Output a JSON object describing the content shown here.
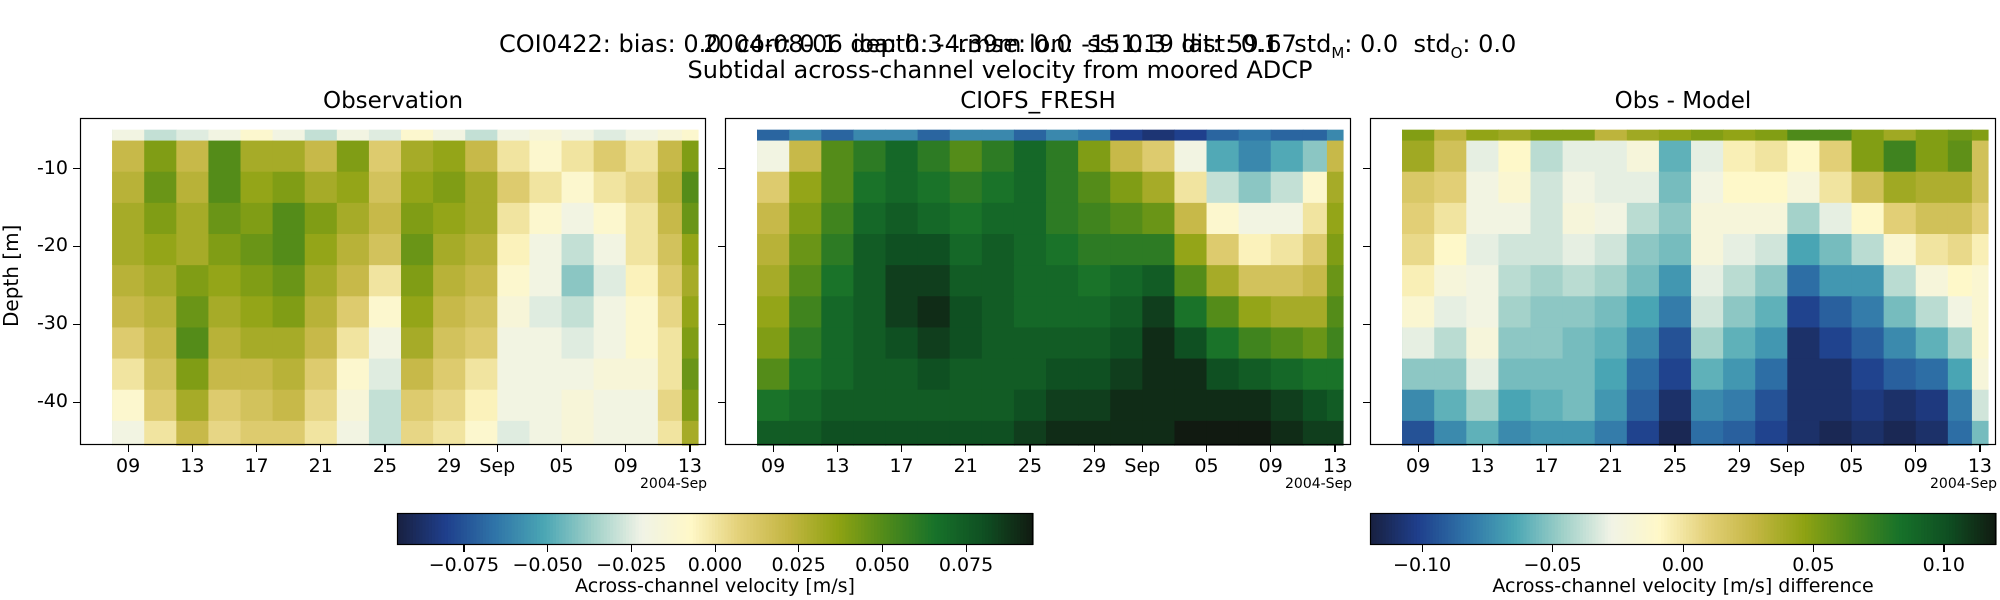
{
  "header": {
    "line1": "COI0422: bias: 0.0  corr: 0.1  ioa: 0.3  rmse: 0.0  ss: 0.3  dist: 0.1  std",
    "line1_sub_m": "M",
    "line1_mid": ": 0.0  std",
    "line1_sub_o": "O",
    "line1_end": ": 0.0",
    "line2": "2004-08-06 depth: -4.39m lon: -151.19 lat: 59.67",
    "line3": "Subtidal across-channel velocity from moored ADCP"
  },
  "chart_data": [
    {
      "type": "heatmap",
      "title": "Observation",
      "ylabel": "Depth [m]",
      "x_ticks": [
        "09",
        "13",
        "17",
        "21",
        "25",
        "29",
        "Sep",
        "05",
        "09",
        "13"
      ],
      "x_offset_label": "2004-Sep",
      "y_ticks": [
        "-10",
        "-20",
        "-30",
        "-40"
      ],
      "ylim": [
        -45.5,
        -3.5
      ],
      "colormap": "diverging blue-white-yellow-green",
      "clim": [
        -0.095,
        0.095
      ],
      "x": [
        "2004-08-07",
        "2004-08-09",
        "2004-08-11",
        "2004-08-13",
        "2004-08-15",
        "2004-08-17",
        "2004-08-19",
        "2004-08-21",
        "2004-08-23",
        "2004-08-25",
        "2004-08-27",
        "2004-08-29",
        "2004-08-31",
        "2004-09-02",
        "2004-09-04",
        "2004-09-06",
        "2004-09-08",
        "2004-09-10",
        "2004-09-12",
        "2004-09-13"
      ],
      "y": [
        -4.4,
        -8.4,
        -12.4,
        -16.4,
        -20.4,
        -24.4,
        -28.4,
        -32.4,
        -36.4,
        -40.4,
        -44.4
      ],
      "values": [
        [
          -0.03,
          -0.02,
          -0.03,
          -0.025,
          -0.02,
          -0.01,
          -0.02,
          -0.03,
          -0.02,
          -0.025,
          -0.01,
          -0.02,
          -0.03,
          -0.02,
          -0.015,
          -0.02,
          -0.025,
          -0.02,
          -0.015,
          -0.01
        ],
        [
          0.01,
          0.02,
          0.04,
          0.02,
          0.05,
          0.03,
          0.03,
          0.02,
          0.04,
          0.01,
          0.03,
          0.035,
          0.02,
          0.0,
          -0.01,
          0.0,
          0.01,
          0.0,
          0.02,
          0.04
        ],
        [
          0.02,
          0.025,
          0.045,
          0.025,
          0.05,
          0.035,
          0.04,
          0.03,
          0.035,
          0.015,
          0.035,
          0.04,
          0.03,
          0.01,
          0.0,
          -0.01,
          0.0,
          0.005,
          0.025,
          0.05
        ],
        [
          0.02,
          0.03,
          0.04,
          0.03,
          0.045,
          0.04,
          0.05,
          0.04,
          0.03,
          0.02,
          0.04,
          0.035,
          0.03,
          0.0,
          -0.01,
          -0.02,
          -0.01,
          0.0,
          0.02,
          0.045
        ],
        [
          0.015,
          0.03,
          0.035,
          0.03,
          0.04,
          0.045,
          0.05,
          0.035,
          0.025,
          0.015,
          0.045,
          0.03,
          0.025,
          -0.005,
          -0.02,
          -0.03,
          -0.02,
          0.0,
          0.015,
          0.035
        ],
        [
          0.0,
          0.025,
          0.03,
          0.04,
          0.035,
          0.04,
          0.045,
          0.03,
          0.02,
          0.0,
          0.04,
          0.025,
          0.02,
          -0.01,
          -0.02,
          -0.04,
          -0.025,
          -0.005,
          0.01,
          0.03
        ],
        [
          -0.01,
          0.02,
          0.025,
          0.045,
          0.03,
          0.035,
          0.04,
          0.025,
          0.01,
          -0.01,
          0.035,
          0.02,
          0.015,
          -0.015,
          -0.025,
          -0.03,
          -0.02,
          -0.01,
          0.005,
          0.035
        ],
        [
          -0.02,
          0.01,
          0.02,
          0.05,
          0.025,
          0.03,
          0.03,
          0.02,
          0.0,
          -0.02,
          0.03,
          0.015,
          0.01,
          -0.02,
          -0.02,
          -0.025,
          -0.02,
          -0.01,
          0.0,
          0.04
        ],
        [
          -0.025,
          0.0,
          0.015,
          0.04,
          0.02,
          0.02,
          0.025,
          0.01,
          -0.01,
          -0.025,
          0.02,
          0.01,
          0.0,
          -0.02,
          -0.02,
          -0.02,
          -0.015,
          -0.015,
          0.0,
          0.045
        ],
        [
          -0.03,
          -0.01,
          0.01,
          0.03,
          0.01,
          0.015,
          0.02,
          0.005,
          -0.015,
          -0.03,
          0.01,
          0.005,
          -0.005,
          -0.02,
          -0.02,
          -0.015,
          -0.02,
          -0.02,
          0.005,
          0.04
        ],
        [
          -0.03,
          -0.02,
          0.0,
          0.02,
          0.005,
          0.01,
          0.01,
          0.0,
          -0.02,
          -0.03,
          0.005,
          0.0,
          -0.01,
          -0.025,
          -0.02,
          -0.015,
          -0.02,
          -0.02,
          0.0,
          0.03
        ]
      ]
    },
    {
      "type": "heatmap",
      "title": "CIOFS_FRESH",
      "x_ticks": [
        "09",
        "13",
        "17",
        "21",
        "25",
        "29",
        "Sep",
        "05",
        "09",
        "13"
      ],
      "x_offset_label": "2004-Sep",
      "ylim": [
        -45.5,
        -3.5
      ],
      "colormap": "diverging blue-white-yellow-green",
      "clim": [
        -0.095,
        0.095
      ],
      "x": [
        "2004-08-07",
        "2004-08-09",
        "2004-08-11",
        "2004-08-13",
        "2004-08-15",
        "2004-08-17",
        "2004-08-19",
        "2004-08-21",
        "2004-08-23",
        "2004-08-25",
        "2004-08-27",
        "2004-08-29",
        "2004-08-31",
        "2004-09-02",
        "2004-09-04",
        "2004-09-06",
        "2004-09-08",
        "2004-09-10",
        "2004-09-12",
        "2004-09-13"
      ],
      "y": [
        -4.4,
        -8.4,
        -12.4,
        -16.4,
        -20.4,
        -24.4,
        -28.4,
        -32.4,
        -36.4,
        -40.4,
        -44.4
      ],
      "values": [
        [
          -0.08,
          -0.07,
          -0.06,
          -0.07,
          -0.06,
          -0.06,
          -0.07,
          -0.06,
          -0.06,
          -0.07,
          -0.06,
          -0.065,
          -0.08,
          -0.085,
          -0.08,
          -0.07,
          -0.065,
          -0.07,
          -0.07,
          -0.06
        ],
        [
          -0.03,
          -0.02,
          0.02,
          0.05,
          0.06,
          0.07,
          0.06,
          0.05,
          0.06,
          0.07,
          0.06,
          0.04,
          0.02,
          0.01,
          -0.02,
          -0.05,
          -0.06,
          -0.05,
          -0.04,
          0.02
        ],
        [
          0.0,
          0.01,
          0.035,
          0.05,
          0.065,
          0.07,
          0.065,
          0.06,
          0.065,
          0.07,
          0.06,
          0.05,
          0.04,
          0.03,
          0.0,
          -0.03,
          -0.04,
          -0.03,
          -0.01,
          0.03
        ],
        [
          0.005,
          0.02,
          0.04,
          0.055,
          0.07,
          0.075,
          0.07,
          0.065,
          0.07,
          0.07,
          0.06,
          0.055,
          0.05,
          0.045,
          0.02,
          -0.01,
          -0.02,
          -0.02,
          0.0,
          0.035
        ],
        [
          0.01,
          0.025,
          0.045,
          0.06,
          0.075,
          0.08,
          0.08,
          0.07,
          0.075,
          0.07,
          0.065,
          0.06,
          0.06,
          0.06,
          0.035,
          0.01,
          -0.005,
          0.0,
          0.01,
          0.04
        ],
        [
          0.015,
          0.03,
          0.05,
          0.065,
          0.075,
          0.085,
          0.085,
          0.075,
          0.075,
          0.07,
          0.07,
          0.065,
          0.07,
          0.075,
          0.05,
          0.03,
          0.015,
          0.015,
          0.02,
          0.045
        ],
        [
          0.02,
          0.035,
          0.055,
          0.07,
          0.075,
          0.085,
          0.09,
          0.08,
          0.075,
          0.07,
          0.07,
          0.07,
          0.075,
          0.085,
          0.065,
          0.05,
          0.035,
          0.03,
          0.03,
          0.05
        ],
        [
          0.03,
          0.04,
          0.06,
          0.07,
          0.075,
          0.08,
          0.085,
          0.08,
          0.075,
          0.075,
          0.075,
          0.075,
          0.08,
          0.09,
          0.08,
          0.065,
          0.055,
          0.05,
          0.045,
          0.055
        ],
        [
          0.045,
          0.05,
          0.065,
          0.07,
          0.075,
          0.075,
          0.08,
          0.075,
          0.075,
          0.075,
          0.08,
          0.08,
          0.085,
          0.09,
          0.09,
          0.08,
          0.075,
          0.07,
          0.065,
          0.065
        ],
        [
          0.06,
          0.065,
          0.07,
          0.075,
          0.075,
          0.075,
          0.075,
          0.075,
          0.075,
          0.08,
          0.085,
          0.085,
          0.09,
          0.09,
          0.09,
          0.09,
          0.09,
          0.085,
          0.08,
          0.075
        ],
        [
          0.075,
          0.075,
          0.075,
          0.08,
          0.08,
          0.08,
          0.08,
          0.08,
          0.08,
          0.085,
          0.09,
          0.09,
          0.09,
          0.09,
          0.095,
          0.095,
          0.095,
          0.09,
          0.085,
          0.085
        ]
      ]
    },
    {
      "type": "heatmap",
      "title": "Obs - Model",
      "x_ticks": [
        "09",
        "13",
        "17",
        "21",
        "25",
        "29",
        "Sep",
        "05",
        "09",
        "13"
      ],
      "x_offset_label": "2004-Sep",
      "ylim": [
        -45.5,
        -3.5
      ],
      "colormap": "diverging blue-white-yellow-green",
      "clim": [
        -0.12,
        0.12
      ],
      "x": [
        "2004-08-07",
        "2004-08-09",
        "2004-08-11",
        "2004-08-13",
        "2004-08-15",
        "2004-08-17",
        "2004-08-19",
        "2004-08-21",
        "2004-08-23",
        "2004-08-25",
        "2004-08-27",
        "2004-08-29",
        "2004-08-31",
        "2004-09-02",
        "2004-09-04",
        "2004-09-06",
        "2004-09-08",
        "2004-09-10",
        "2004-09-12",
        "2004-09-13"
      ],
      "y": [
        -4.4,
        -8.4,
        -12.4,
        -16.4,
        -20.4,
        -24.4,
        -28.4,
        -32.4,
        -36.4,
        -40.4,
        -44.4
      ],
      "values": [
        [
          0.05,
          0.05,
          0.03,
          0.045,
          0.04,
          0.05,
          0.05,
          0.03,
          0.04,
          0.045,
          0.05,
          0.045,
          0.05,
          0.065,
          0.065,
          0.05,
          0.04,
          0.05,
          0.055,
          0.05
        ],
        [
          0.04,
          0.04,
          0.02,
          -0.03,
          -0.01,
          -0.04,
          -0.03,
          -0.03,
          -0.02,
          -0.06,
          -0.03,
          -0.005,
          0.0,
          -0.01,
          0.01,
          0.05,
          0.07,
          0.05,
          0.06,
          0.02
        ],
        [
          0.02,
          0.015,
          0.01,
          -0.025,
          -0.015,
          -0.035,
          -0.025,
          -0.03,
          -0.03,
          -0.055,
          -0.025,
          -0.01,
          -0.01,
          -0.02,
          0.0,
          0.02,
          0.04,
          0.035,
          0.035,
          0.02
        ],
        [
          0.015,
          0.01,
          0.0,
          -0.025,
          -0.025,
          -0.035,
          -0.02,
          -0.025,
          -0.04,
          -0.05,
          -0.02,
          -0.02,
          -0.02,
          -0.045,
          -0.03,
          -0.01,
          0.01,
          0.02,
          0.02,
          0.01
        ],
        [
          0.005,
          0.005,
          -0.01,
          -0.03,
          -0.035,
          -0.035,
          -0.03,
          -0.035,
          -0.05,
          -0.055,
          -0.02,
          -0.03,
          -0.035,
          -0.065,
          -0.055,
          -0.04,
          -0.015,
          0.0,
          0.005,
          -0.005
        ],
        [
          -0.015,
          -0.005,
          -0.02,
          -0.025,
          -0.04,
          -0.045,
          -0.04,
          -0.045,
          -0.055,
          -0.07,
          -0.03,
          -0.04,
          -0.05,
          -0.085,
          -0.07,
          -0.07,
          -0.04,
          -0.02,
          -0.01,
          -0.015
        ],
        [
          -0.03,
          -0.015,
          -0.03,
          -0.025,
          -0.045,
          -0.05,
          -0.05,
          -0.055,
          -0.065,
          -0.08,
          -0.035,
          -0.05,
          -0.06,
          -0.1,
          -0.09,
          -0.08,
          -0.055,
          -0.04,
          -0.025,
          -0.015
        ],
        [
          -0.05,
          -0.03,
          -0.04,
          -0.02,
          -0.05,
          -0.05,
          -0.055,
          -0.06,
          -0.075,
          -0.095,
          -0.045,
          -0.06,
          -0.07,
          -0.11,
          -0.1,
          -0.09,
          -0.075,
          -0.06,
          -0.045,
          -0.015
        ],
        [
          -0.07,
          -0.05,
          -0.05,
          -0.03,
          -0.055,
          -0.055,
          -0.055,
          -0.065,
          -0.085,
          -0.1,
          -0.06,
          -0.07,
          -0.085,
          -0.11,
          -0.11,
          -0.1,
          -0.09,
          -0.085,
          -0.065,
          -0.02
        ],
        [
          -0.09,
          -0.075,
          -0.06,
          -0.045,
          -0.065,
          -0.06,
          -0.055,
          -0.07,
          -0.09,
          -0.11,
          -0.075,
          -0.08,
          -0.095,
          -0.11,
          -0.11,
          -0.105,
          -0.11,
          -0.105,
          -0.08,
          -0.035
        ],
        [
          -0.105,
          -0.095,
          -0.075,
          -0.06,
          -0.075,
          -0.07,
          -0.07,
          -0.08,
          -0.1,
          -0.115,
          -0.085,
          -0.09,
          -0.1,
          -0.11,
          -0.115,
          -0.11,
          -0.115,
          -0.11,
          -0.085,
          -0.055
        ]
      ]
    }
  ],
  "colorbars": [
    {
      "ticks": [
        "−0.075",
        "−0.050",
        "−0.025",
        "0.000",
        "0.025",
        "0.050",
        "0.075"
      ],
      "tick_values": [
        -0.075,
        -0.05,
        -0.025,
        0.0,
        0.025,
        0.05,
        0.075
      ],
      "clim": [
        -0.095,
        0.095
      ],
      "label": "Across-channel velocity [m/s]"
    },
    {
      "ticks": [
        "−0.10",
        "−0.05",
        "0.00",
        "0.05",
        "0.10"
      ],
      "tick_values": [
        -0.1,
        -0.05,
        0.0,
        0.05,
        0.1
      ],
      "clim": [
        -0.12,
        0.12
      ],
      "label": "Across-channel velocity [m/s] difference"
    }
  ],
  "colors": [
    "#18203f",
    "#1f3f8c",
    "#2f74a8",
    "#4aa6b4",
    "#9fd0c8",
    "#f0f3e6",
    "#fff8c8",
    "#e3d078",
    "#c3b642",
    "#8fa313",
    "#4f8a1a",
    "#17722a",
    "#0f4f22",
    "#111a11"
  ]
}
